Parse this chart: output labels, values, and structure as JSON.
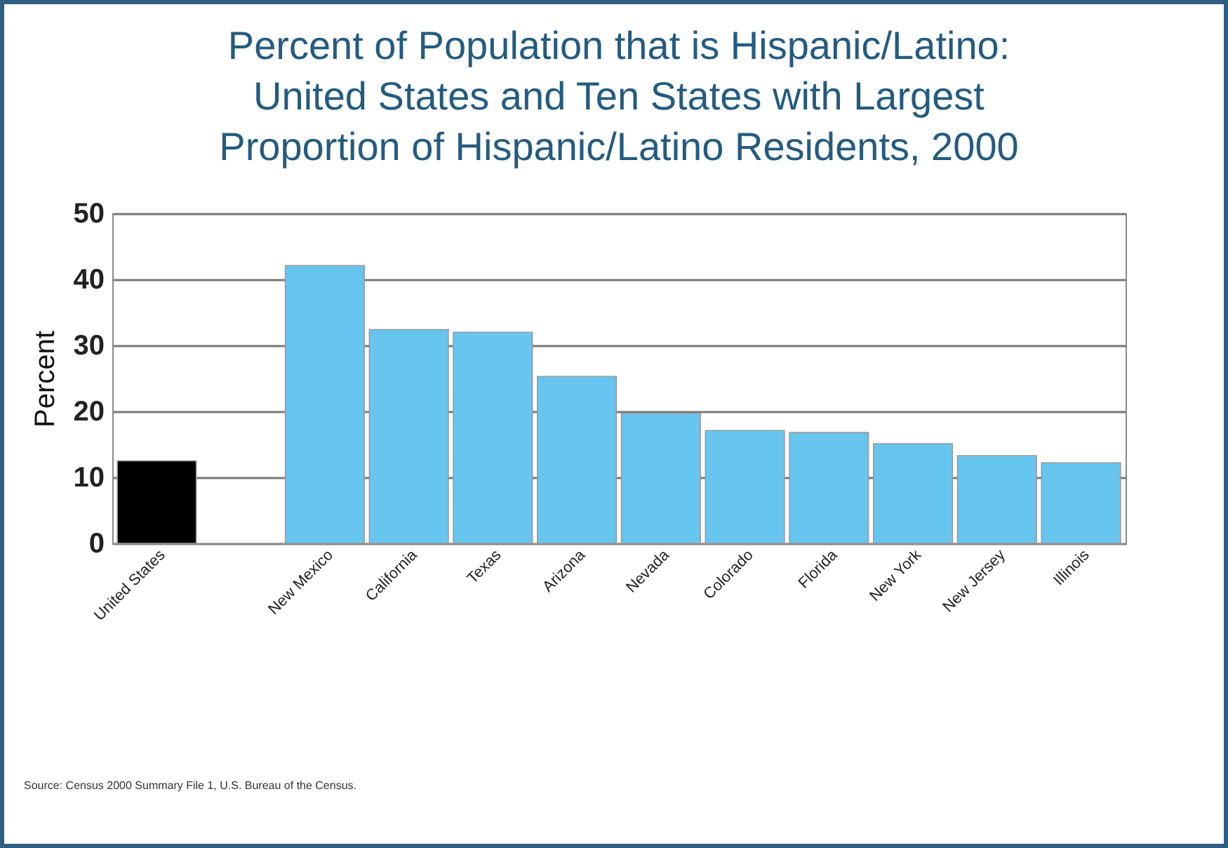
{
  "chart_data": {
    "type": "bar",
    "title": "Percent of Population that is Hispanic/Latino:\nUnited States and Ten States with Largest\nProportion of Hispanic/Latino Residents, 2000",
    "ylabel": "Percent",
    "categories": [
      "United States",
      null,
      "New Mexico",
      "California",
      "Texas",
      "Arizona",
      "Nevada",
      "Colorado",
      "Florida",
      "New York",
      "New Jersey",
      "Illinois"
    ],
    "values": [
      12.5,
      null,
      42.1,
      32.4,
      32,
      25.3,
      19.7,
      17.1,
      16.8,
      15.1,
      13.3,
      12.2
    ],
    "colors": [
      "#000000",
      null,
      "#66c6ef",
      "#66c6ef",
      "#66c6ef",
      "#66c6ef",
      "#66c6ef",
      "#66c6ef",
      "#66c6ef",
      "#66c6ef",
      "#66c6ef",
      "#66c6ef"
    ],
    "ylim": [
      0,
      50
    ],
    "yticks": [
      0,
      10,
      20,
      30,
      40,
      50
    ],
    "grid": "y",
    "annotations": [
      "Source: Census 2000 Summary File 1, U.S. Bureau of the Census."
    ]
  }
}
